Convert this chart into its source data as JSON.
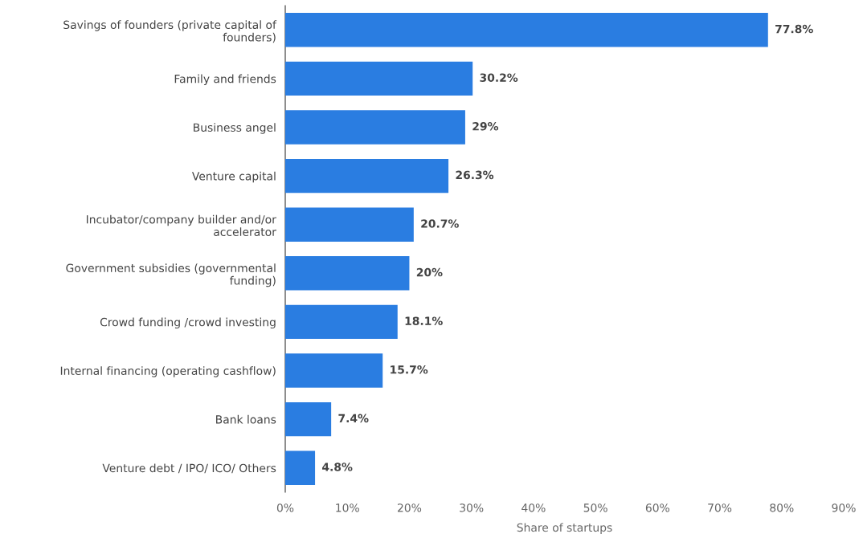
{
  "chart_data": {
    "type": "bar",
    "orientation": "horizontal",
    "xlabel": "Share of startups",
    "categories": [
      "Savings of founders (private capital of\nfounders)",
      "Family and friends",
      "Business angel",
      "Venture capital",
      "Incubator/company builder and/or\naccelerator",
      "Government subsidies (governmental\nfunding)",
      "Crowd funding /crowd investing",
      "Internal financing (operating cashflow)",
      "Bank loans",
      "Venture debt / IPO/ ICO/ Others"
    ],
    "values": [
      77.8,
      30.2,
      29,
      26.3,
      20.7,
      20,
      18.1,
      15.7,
      7.4,
      4.8
    ],
    "value_labels": [
      "77.8%",
      "30.2%",
      "29%",
      "26.3%",
      "20.7%",
      "20%",
      "18.1%",
      "15.7%",
      "7.4%",
      "4.8%"
    ],
    "color": "#2a7de1",
    "xlim": [
      0,
      90
    ],
    "xticks": [
      {
        "value": 0,
        "label": "0%"
      },
      {
        "value": 10,
        "label": "10%"
      },
      {
        "value": 20,
        "label": "20%"
      },
      {
        "value": 30,
        "label": "30%"
      },
      {
        "value": 40,
        "label": "40%"
      },
      {
        "value": 50,
        "label": "50%"
      },
      {
        "value": 60,
        "label": "60%"
      },
      {
        "value": 70,
        "label": "70%"
      },
      {
        "value": 80,
        "label": "80%"
      },
      {
        "value": 90,
        "label": "90%"
      }
    ],
    "grid": false,
    "legend": false
  }
}
